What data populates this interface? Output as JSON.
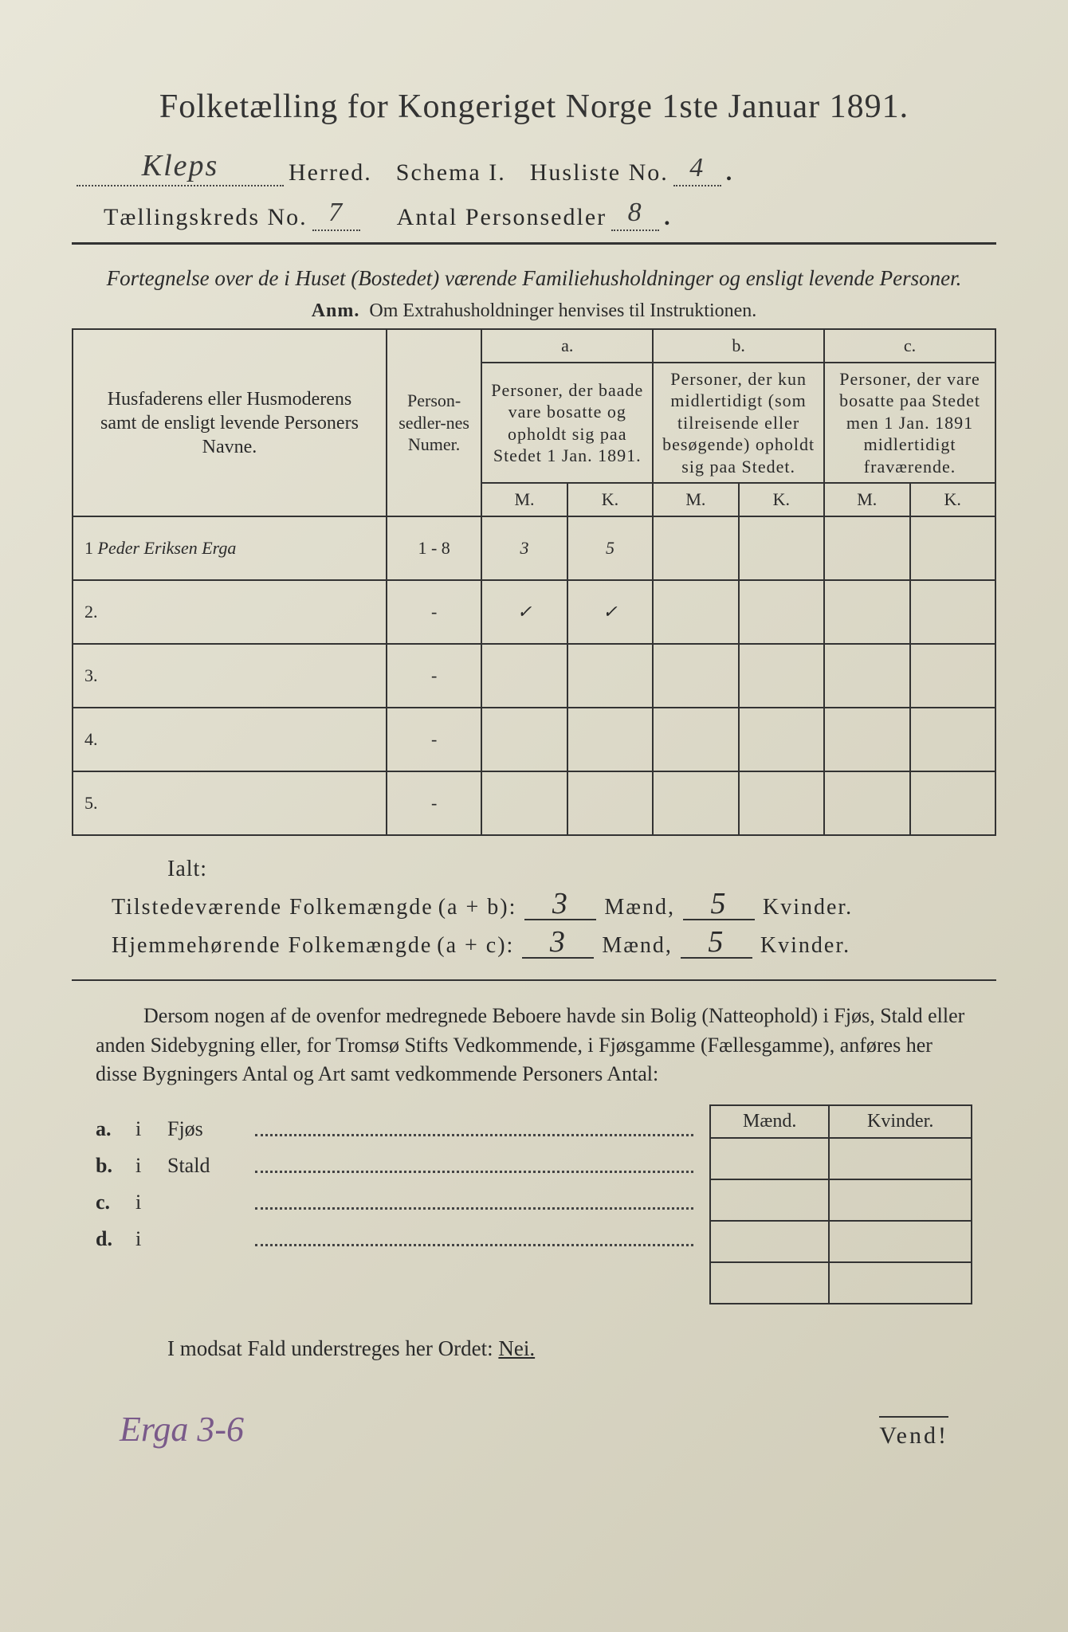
{
  "title": "Folketælling for Kongeriget Norge 1ste Januar 1891.",
  "header": {
    "herred_hw": "Kleps",
    "herred_lbl": "Herred.",
    "schema_lbl": "Schema I.",
    "husliste_lbl": "Husliste No.",
    "husliste_hw": "4",
    "tkreds_lbl": "Tællingskreds No.",
    "tkreds_hw": "7",
    "antal_lbl": "Antal Personsedler",
    "antal_hw": "8"
  },
  "desc": "Fortegnelse over de i Huset (Bostedet) værende Familiehusholdninger og ensligt levende Personer.",
  "anm_b": "Anm.",
  "anm_t": "Om Extrahusholdninger henvises til Instruktionen.",
  "table": {
    "col_name": "Husfaderens eller Husmoderens samt de ensligt levende Personers Navne.",
    "col_numer": "Person-sedler-nes Numer.",
    "a": "a.",
    "a_desc": "Personer, der baade vare bosatte og opholdt sig paa Stedet 1 Jan. 1891.",
    "b": "b.",
    "b_desc": "Personer, der kun midlertidigt (som tilreisende eller besøgende) opholdt sig paa Stedet.",
    "c": "c.",
    "c_desc": "Personer, der vare bosatte paa Stedet men 1 Jan. 1891 midlertidigt fraværende.",
    "M": "M.",
    "K": "K.",
    "rows": [
      {
        "n": "1",
        "name": "Peder Eriksen Erga",
        "numer": "1 - 8",
        "aM": "3",
        "aK": "5",
        "bM": "",
        "bK": "",
        "cM": "",
        "cK": ""
      },
      {
        "n": "2.",
        "name": "",
        "numer": "-",
        "aM": "✓",
        "aK": "✓",
        "bM": "",
        "bK": "",
        "cM": "",
        "cK": ""
      },
      {
        "n": "3.",
        "name": "",
        "numer": "-",
        "aM": "",
        "aK": "",
        "bM": "",
        "bK": "",
        "cM": "",
        "cK": ""
      },
      {
        "n": "4.",
        "name": "",
        "numer": "-",
        "aM": "",
        "aK": "",
        "bM": "",
        "bK": "",
        "cM": "",
        "cK": ""
      },
      {
        "n": "5.",
        "name": "",
        "numer": "-",
        "aM": "",
        "aK": "",
        "bM": "",
        "bK": "",
        "cM": "",
        "cK": ""
      }
    ]
  },
  "ialt": "Ialt:",
  "totals": {
    "t1_lbl": "Tilstedeværende Folkemængde",
    "t1_ab": "(a + b):",
    "t1_m": "3",
    "t1_k": "5",
    "t2_lbl": "Hjemmehørende Folkemængde",
    "t2_ab": "(a + c):",
    "t2_m": "3",
    "t2_k": "5",
    "maend": "Mænd,",
    "kvinder": "Kvinder."
  },
  "para": "Dersom nogen af de ovenfor medregnede Beboere havde sin Bolig (Natteophold) i Fjøs, Stald eller anden Sidebygning eller, for Tromsø Stifts Vedkommende, i Fjøsgamme (Fællesgamme), anføres her disse Bygningers Antal og Art samt vedkommende Personers Antal:",
  "side": {
    "mk_m": "Mænd.",
    "mk_k": "Kvinder.",
    "rows": [
      {
        "l": "a.",
        "i": "i",
        "nm": "Fjøs"
      },
      {
        "l": "b.",
        "i": "i",
        "nm": "Stald"
      },
      {
        "l": "c.",
        "i": "i",
        "nm": ""
      },
      {
        "l": "d.",
        "i": "i",
        "nm": ""
      }
    ]
  },
  "nei": "I modsat Fald understreges her Ordet:",
  "nei_u": "Nei.",
  "foot_hw": "Erga 3-6",
  "vend": "Vend!"
}
